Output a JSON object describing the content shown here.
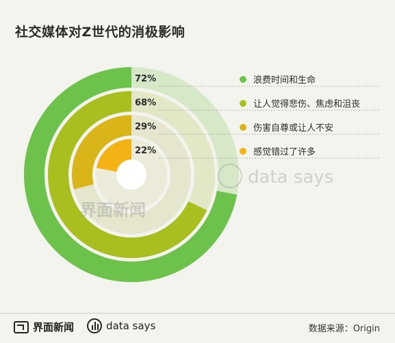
{
  "title": "社交媒体对Z世代的消极影响",
  "chart_data": {
    "type": "radial-bar",
    "max": 100,
    "series": [
      {
        "label": "浪费时间和生命",
        "value": 72,
        "value_label": "72%",
        "color": "#6cc24a",
        "track": "#d6e8c8"
      },
      {
        "label": "让人觉得悲伤、焦虑和沮丧",
        "value": 68,
        "value_label": "68%",
        "color": "#a9bf1f",
        "track": "#e2e7c5"
      },
      {
        "label": "伤害自尊或让人不安",
        "value": 29,
        "value_label": "29%",
        "color": "#d9b51a",
        "track": "#e6e6cf"
      },
      {
        "label": "感觉错过了许多",
        "value": 22,
        "value_label": "22%",
        "color": "#f4b315",
        "track": "#ecebd9"
      }
    ]
  },
  "watermark": {
    "left_brand": "界面新闻",
    "right_brand": "data says"
  },
  "footer": {
    "brand_left": "界面新闻",
    "brand_mid": "data says",
    "source": "数据来源：Origin"
  }
}
